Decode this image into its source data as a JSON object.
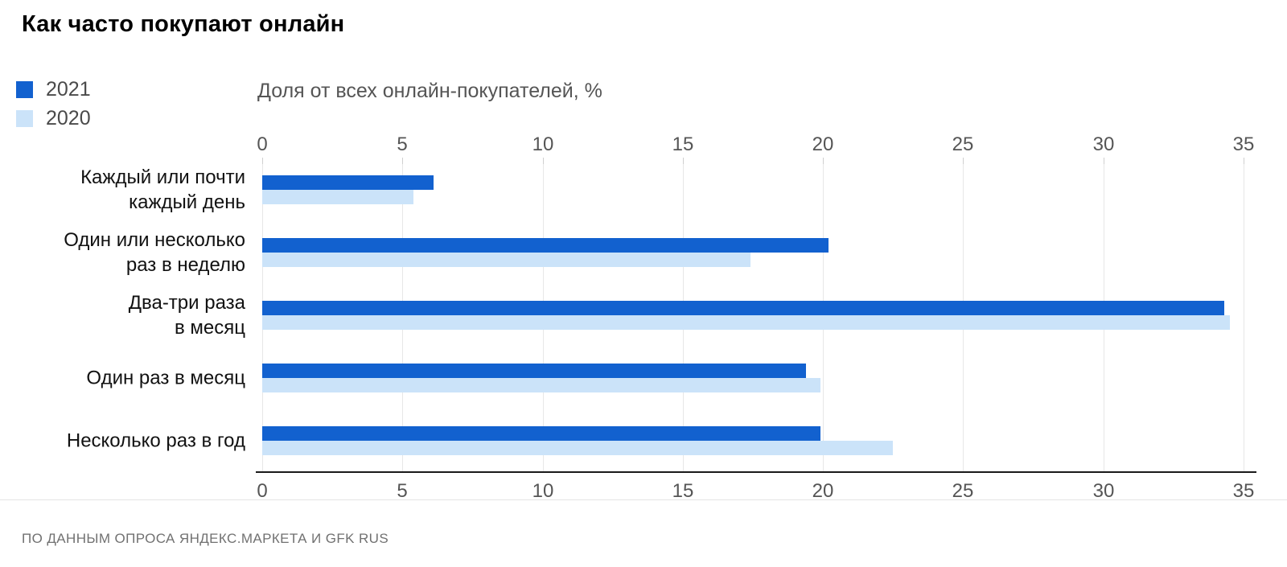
{
  "title": "Как часто покупают онлайн",
  "subtitle": "Доля от всех онлайн-покупателей, %",
  "legend": [
    {
      "label": "2021",
      "color": "#1261cf"
    },
    {
      "label": "2020",
      "color": "#cbe3f9"
    }
  ],
  "footer": "ПО ДАННЫМ ОПРОСА ЯНДЕКС.МАРКЕТА И GFK RUS",
  "colors": {
    "bar_2021": "#1261cf",
    "bar_2020": "#cbe3f9",
    "grid": "#e7e7e7",
    "axis_line": "#1a1a1a",
    "tick_text": "#555555",
    "footer_text": "#717171"
  },
  "chart_data": {
    "type": "bar",
    "orientation": "horizontal",
    "title": "Как часто покупают онлайн",
    "xlabel": "Доля от всех онлайн-покупателей, %",
    "categories": [
      "Каждый или почти\nкаждый день",
      "Один или несколько\nраз в неделю",
      "Два-три раза\nв месяц",
      "Один раз в месяц",
      "Несколько раз в год"
    ],
    "series": [
      {
        "name": "2021",
        "color": "#1261cf",
        "values": [
          6.1,
          20.2,
          34.3,
          19.4,
          19.9
        ]
      },
      {
        "name": "2020",
        "color": "#cbe3f9",
        "values": [
          5.4,
          17.4,
          34.5,
          19.9,
          22.5
        ]
      }
    ],
    "xlim": [
      0,
      35
    ],
    "xticks": [
      0,
      5,
      10,
      15,
      20,
      25,
      30,
      35
    ],
    "grid": true,
    "axis_labels_position": "top and bottom",
    "legend_position": "top-left",
    "source": "ПО ДАННЫМ ОПРОСА ЯНДЕКС.МАРКЕТА И GFK RUS"
  }
}
